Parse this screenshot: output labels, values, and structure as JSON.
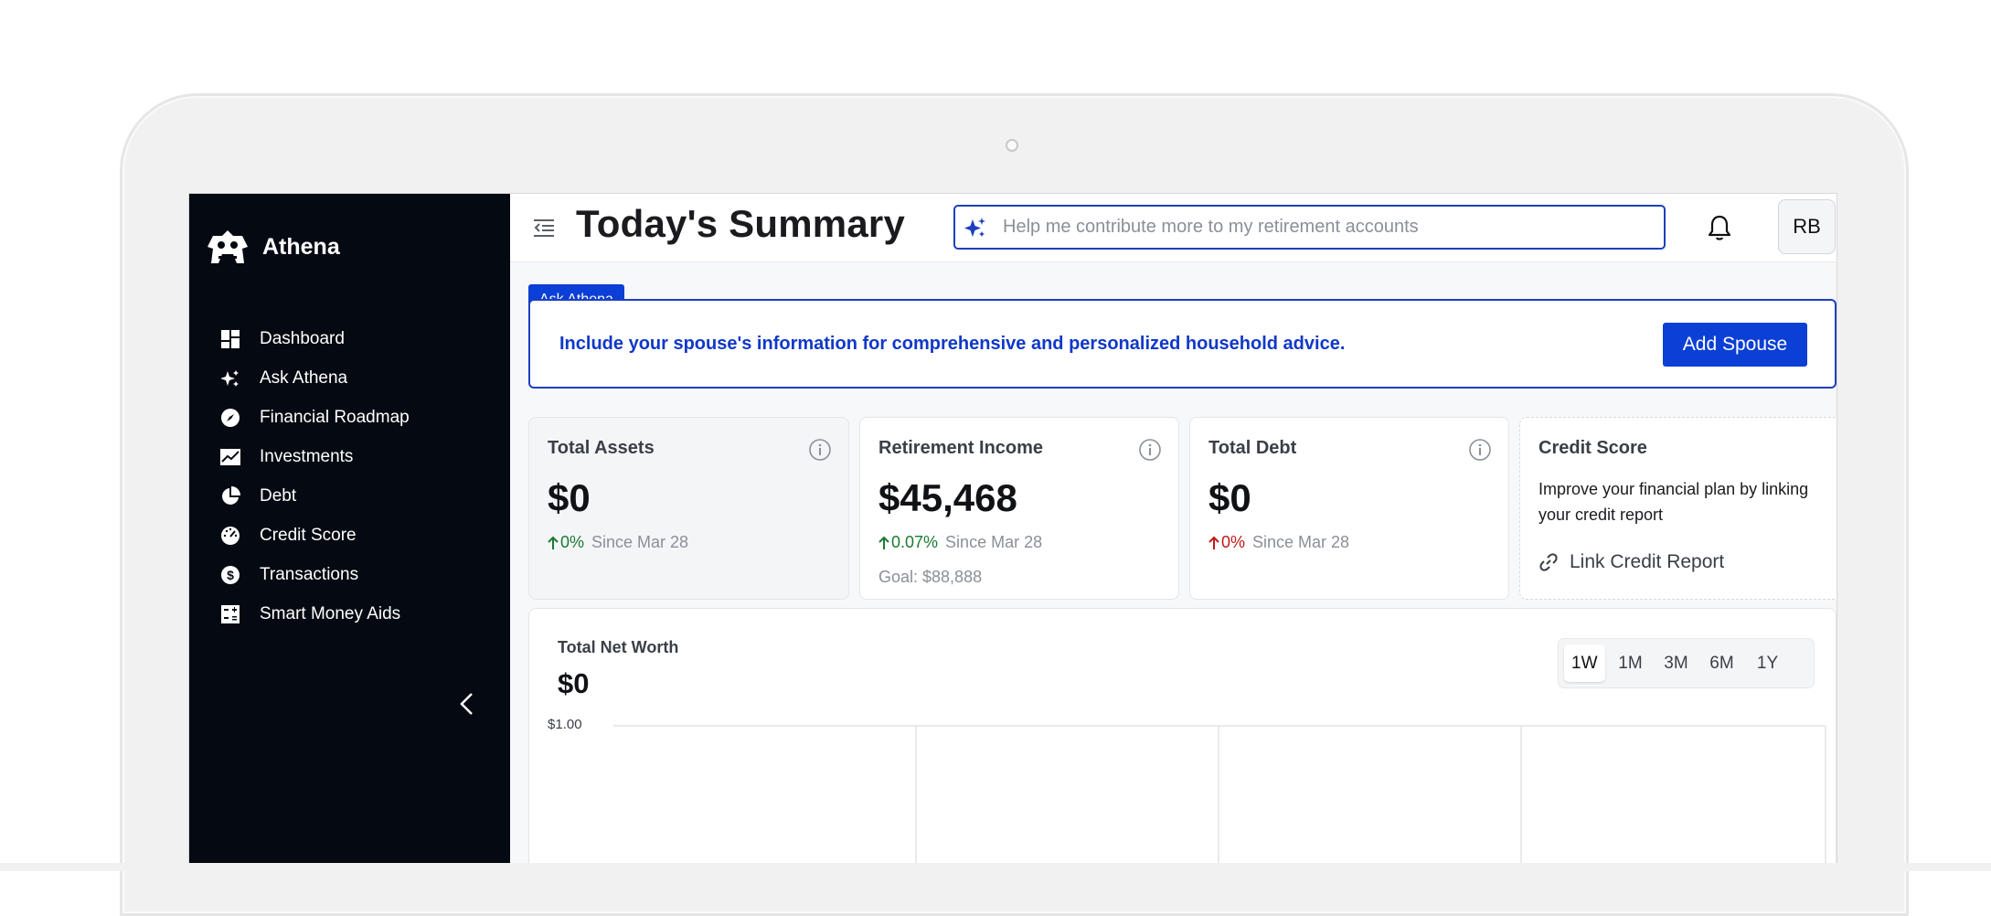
{
  "app": {
    "name": "Athena"
  },
  "sidebar": {
    "items": [
      {
        "label": "Dashboard",
        "icon": "dashboard-icon"
      },
      {
        "label": "Ask Athena",
        "icon": "sparkle-icon"
      },
      {
        "label": "Financial Roadmap",
        "icon": "compass-icon"
      },
      {
        "label": "Investments",
        "icon": "chart-line-icon"
      },
      {
        "label": "Debt",
        "icon": "pie-icon"
      },
      {
        "label": "Credit Score",
        "icon": "gauge-icon"
      },
      {
        "label": "Transactions",
        "icon": "dollar-icon"
      },
      {
        "label": "Smart Money Aids",
        "icon": "calculator-icon"
      }
    ]
  },
  "header": {
    "title": "Today's Summary",
    "search_placeholder": "Help me contribute more to my retirement accounts",
    "avatar_initials": "RB"
  },
  "banner": {
    "tag": "Ask Athena",
    "message": "Include your spouse's information for comprehensive and personalized household advice.",
    "button": "Add Spouse"
  },
  "cards": {
    "total_assets": {
      "title": "Total Assets",
      "value": "$0",
      "change": "0%",
      "since": "Since Mar 28"
    },
    "retirement_income": {
      "title": "Retirement Income",
      "value": "$45,468",
      "change": "0.07%",
      "since": "Since Mar 28",
      "goal": "Goal: $88,888"
    },
    "total_debt": {
      "title": "Total Debt",
      "value": "$0",
      "change": "0%",
      "since": "Since Mar 28"
    },
    "credit_score": {
      "title": "Credit Score",
      "description": "Improve your financial plan by linking your credit report",
      "link": "Link Credit Report"
    }
  },
  "net_worth": {
    "title": "Total Net Worth",
    "value": "$0",
    "ranges": [
      "1W",
      "1M",
      "3M",
      "6M",
      "1Y"
    ],
    "active_range": "1W"
  },
  "colors": {
    "sidebar_bg": "#050a12",
    "accent": "#0b3fd6",
    "up": "#1b7a32",
    "down": "#c01818"
  },
  "chart_data": {
    "type": "line",
    "title": "Total Net Worth",
    "y_tick_labels": [
      "$1.00"
    ],
    "series": []
  }
}
